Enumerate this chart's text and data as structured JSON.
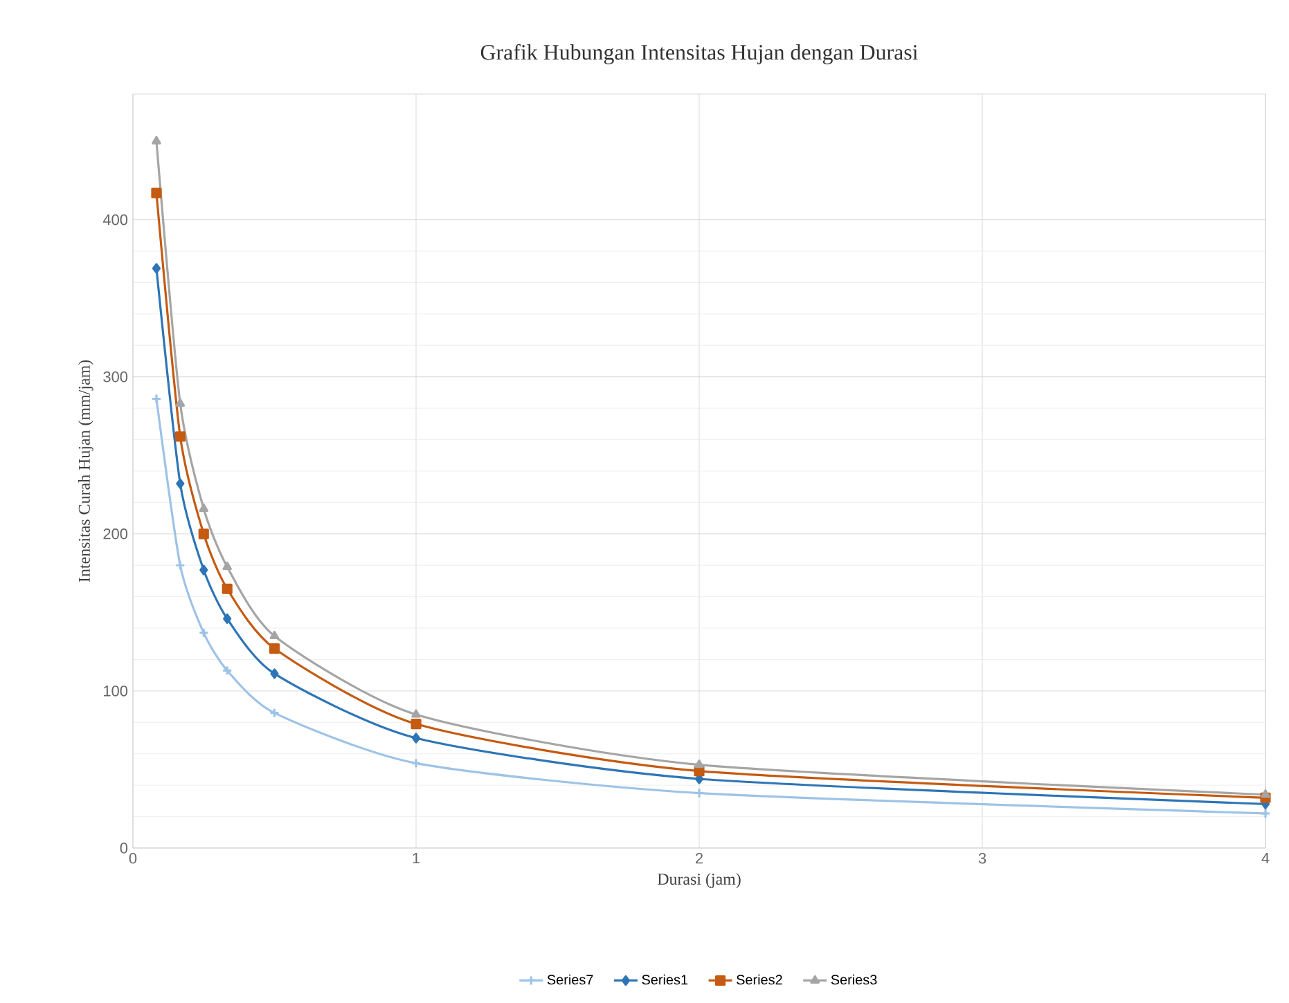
{
  "chart_data": {
    "type": "line",
    "title": "Grafik Hubungan Intensitas Hujan dengan Durasi",
    "xlabel": "Durasi (jam)",
    "ylabel": "Intensitas Curah Hujan (mm/jam)",
    "x": [
      0.083,
      0.167,
      0.25,
      0.333,
      0.5,
      1,
      2,
      4
    ],
    "series": [
      {
        "name": "Series7",
        "color": "#9dc3e6",
        "marker": "cross",
        "values": [
          286,
          180,
          137,
          113,
          86,
          54,
          35,
          22
        ]
      },
      {
        "name": "Series1",
        "color": "#2e75b6",
        "marker": "diamond",
        "values": [
          369,
          232,
          177,
          146,
          111,
          70,
          44,
          28
        ]
      },
      {
        "name": "Series2",
        "color": "#c55a11",
        "marker": "square",
        "values": [
          417,
          262,
          200,
          165,
          127,
          79,
          49,
          32
        ]
      },
      {
        "name": "Series3",
        "color": "#a5a5a5",
        "marker": "triangle",
        "values": [
          450,
          283,
          216,
          179,
          135,
          85,
          53,
          34
        ]
      }
    ],
    "xlim": [
      0,
      4
    ],
    "ylim": [
      0,
      480
    ],
    "xticks": [
      0,
      1,
      2,
      3,
      4
    ],
    "yticks": [
      0,
      100,
      200,
      300,
      400
    ],
    "grid": true,
    "legend": "bottom",
    "line_style": "solid"
  }
}
